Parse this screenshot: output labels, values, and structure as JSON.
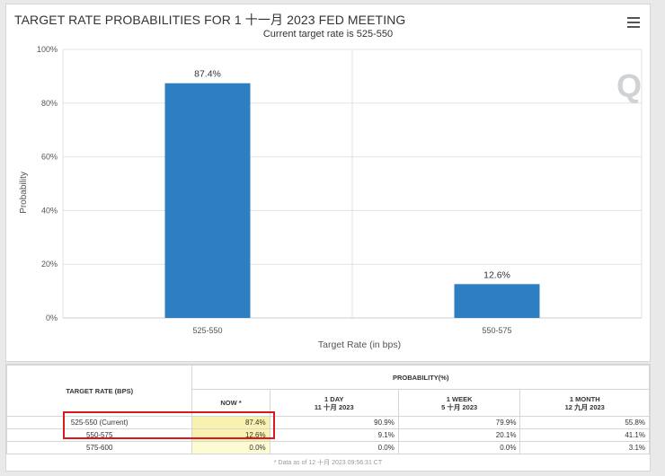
{
  "chart_data": {
    "type": "bar",
    "title": "TARGET RATE PROBABILITIES FOR 1 十一月 2023 FED MEETING",
    "subtitle": "Current target rate is 525-550",
    "categories": [
      "525-550",
      "550-575"
    ],
    "values": [
      87.4,
      12.6
    ],
    "data_labels": [
      "87.4%",
      "12.6%"
    ],
    "xlabel": "Target Rate (in bps)",
    "ylabel": "Probability",
    "ylim": [
      0,
      100
    ],
    "yticks": [
      "0%",
      "20%",
      "40%",
      "60%",
      "80%",
      "100%"
    ],
    "grid": true,
    "bar_color": "#2e7fc1"
  },
  "watermark": "Q",
  "table": {
    "header_target": "TARGET RATE (BPS)",
    "header_probability": "PROBABILITY(%)",
    "columns": [
      {
        "line1": "NOW *",
        "line2": ""
      },
      {
        "line1": "1 DAY",
        "line2": "11 十月 2023"
      },
      {
        "line1": "1 WEEK",
        "line2": "5 十月 2023"
      },
      {
        "line1": "1 MONTH",
        "line2": "12 九月 2023"
      }
    ],
    "rows": [
      {
        "rate": "525-550 (Current)",
        "values": [
          "87.4%",
          "90.9%",
          "79.9%",
          "55.8%"
        ]
      },
      {
        "rate": "550-575",
        "values": [
          "12.6%",
          "9.1%",
          "20.1%",
          "41.1%"
        ]
      },
      {
        "rate": "575-600",
        "values": [
          "0.0%",
          "0.0%",
          "0.0%",
          "3.1%"
        ]
      }
    ],
    "footnote": "* Data as of 12 十月 2023 09:56:31 CT"
  }
}
